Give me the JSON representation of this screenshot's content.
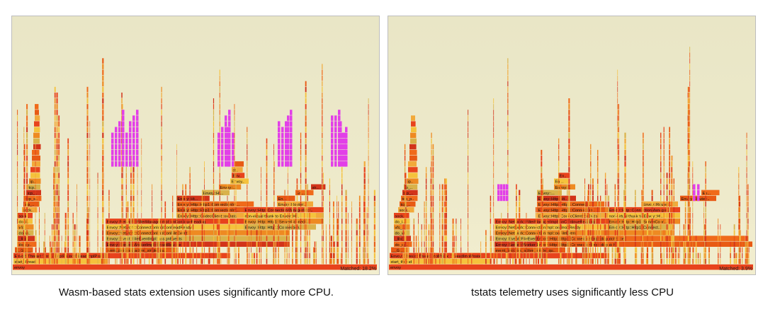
{
  "panels": [
    {
      "matched_label": "Matched: 18.2%",
      "caption": "Wasm-based stats extension uses significantly more CPU.",
      "stacks": [
        {
          "labels": [
            "[unknown]",
            "do_s...",
            "__GI___",
            "do_syscall_64",
            "_libc_writev",
            "do_writev",
            "vfs_writev",
            "do_iter_writev",
            "sock_write_iter",
            "sock_sendmsg",
            "tcp_sendmsg",
            "tcp_sendmsg_lo...",
            "tcp_push",
            "tcp_tran...",
            "ip_local...",
            "ip_out...",
            "ip_fin...",
            "ip_fi...",
            "lo...",
            "do_s...",
            "_do...",
            "nef...",
            "proc...",
            "nef...",
            "ip_l...",
            "ip_fi...",
            "tc...",
            "tc..."
          ]
        },
        {
          "labels": [
            "entr...",
            "do_..."
          ]
        },
        {
          "labels": [
            "_clock_...",
            "vdso..."
          ]
        },
        {
          "labels": [
            "event_base_loop",
            "event_process_active_single_queue",
            "Envoy::Event::Dispatche...",
            "Envoy::Exten...",
            "std::_Functi...",
            "Wasm..."
          ]
        },
        {
          "labels": [
            "Envoy::Server::WorkerImpl::threadRoutine",
            "Envoy::Event::FileEventImpl::assignEvents",
            "Envoy::Network::ConnectionImpl::onFileEvent",
            "Envoy::Network::ConnectionImpl::onReadReady",
            "Envoy::Network::FilterManagerImpl::onContinueReading",
            "Envoy::Http::CodecClient::onData",
            "Envoy::Http::Http1::ConnectionIm...",
            "Envoy::Http::Http1::ConnectionIm...",
            "Envoy::Ht...",
            "Envoy::Ht...",
            "Envoy::...",
            "Envoy::...",
            "Env...",
            "std...",
            "std..."
          ]
        },
        {
          "labels": [
            "start_thread",
            "Envoy::Thread::ThreadImplPosix::ThreadImplPosix",
            "Envoy::Http::ConnectionManagerImpl::onData",
            "Envoy::Http::Http1::ConnectionImpl::dispatch",
            "Envoy::Http::Http1::ConnectionImpl::dispatchSlice",
            "http_parser_execute",
            "Envoy::Http::Http1::ConnectionIm...",
            "Envoy::Http::Http1::ServerConnectionIm...",
            "non-virtual thunk to Envoy::Http...",
            "Envoy::Http::ConnectionManagerImpl...",
            "Envoy::Router::...",
            "En...",
            "En...",
            "vir..."
          ]
        }
      ]
    },
    {
      "matched_label": "Matched: 3.9%",
      "caption": "tstats telemetry uses significantly less CPU",
      "stacks": [
        {
          "labels": [
            "[unknown]",
            "do_sys...",
            "__GI__",
            "do_syscall_64",
            "_libc_writev",
            "do_writev",
            "vfs_writev",
            "do_iter_writev",
            "sock_write_iter",
            "sock_sendmsg",
            "tcp_sendmsg",
            "tcp_push",
            "tcp_write_xm...",
            "ip_queue_x...",
            "ip_local...",
            "ip_out...",
            "ip_fin...",
            "do_s...",
            "_do...",
            "nef...",
            "proc...",
            "nef...",
            "ip_l...",
            "ip_fi...",
            "tc...",
            "tc..."
          ]
        },
        {
          "labels": [
            "entry_SYSCALL_64_af...",
            "do_syscall_64"
          ]
        },
        {
          "labels": [
            "_clock_g...",
            "vdso_c..."
          ]
        },
        {
          "labels": [
            "event_base_loop",
            "event_process_active_single_queue",
            "Envoy::Event::...",
            "Envoy::Http::...",
            "Envoy::Http::..."
          ]
        },
        {
          "labels": [
            "Envoy::Server::WorkerImpl::threadRoutine",
            "Envoy::Event::FileEventImpl::assignEvents",
            "Envoy::Network::ConnectionImpl::onFileEvent",
            "Envoy::Network::ConnectionImpl::onReadReady",
            "Envoy::Network::FilterManagerImpl::onContinueReading",
            "Envoy::Http::CodecClient::onData",
            "Envoy::Http::Http1::Connection...",
            "Envoy::Http::Http1::Connection...",
            "Envoy::Http::Ht...",
            "Envoy::...",
            "Envoy::...",
            "En...",
            "Env..."
          ]
        },
        {
          "labels": [
            "start_thread",
            "Envoy::Thread::ThreadImplPosix::ThreadImplPosix",
            "Envoy::Http::ConnectionManagerImpl::onData",
            "Envoy::Http::Http1::ConnectionImpl::dispatch",
            "Envoy::Http::Http1::ConnectionImpl::dispatchSlice",
            "http_parser_execute",
            "Envoy::Http::Http1::ConnectionIm...",
            "Envoy::Http::Http1::ServerConnectionIm...",
            "non-virtual thunk to Envoy::Http...",
            "Envoy::Http::ConnectionManagerImpl...",
            "Envoy::Router::...",
            "Envoy::Router::...",
            "En..."
          ]
        }
      ]
    }
  ],
  "chart_data": [
    {
      "type": "flamegraph",
      "root": "envoy",
      "matched_percent": 18.2,
      "annotation": "Wasm-based stats extension uses significantly more CPU."
    },
    {
      "type": "flamegraph",
      "root": "envoy",
      "matched_percent": 3.9,
      "annotation": "tstats telemetry uses significantly less CPU"
    }
  ],
  "colors": {
    "warm": [
      "#e8431c",
      "#f06a1a",
      "#ee8a22",
      "#f2a93a",
      "#d2341a",
      "#f5c23c",
      "#e85a14",
      "#d9b24a"
    ],
    "matched_highlight": "#e23fe8",
    "background": "#ebe8c8"
  }
}
